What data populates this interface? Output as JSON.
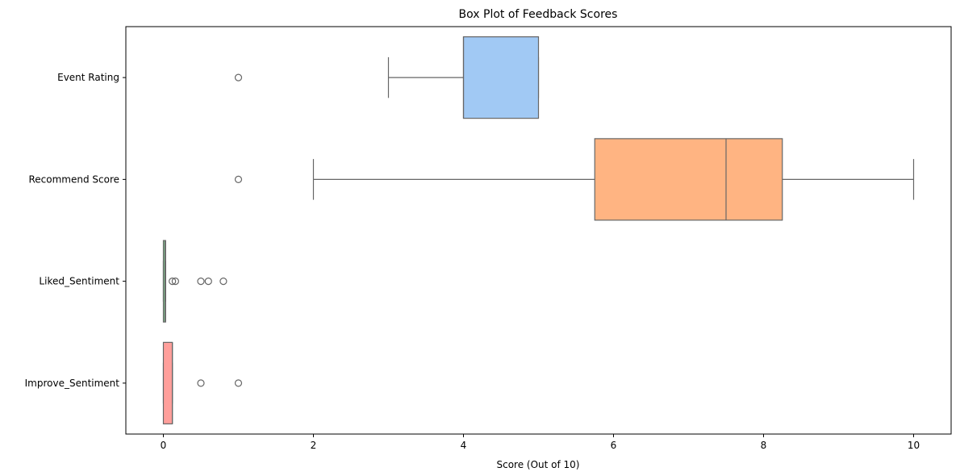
{
  "chart_data": {
    "type": "box",
    "title": "Box Plot of Feedback Scores",
    "xlabel": "Score (Out of 10)",
    "ylabel": "",
    "xlim": [
      -0.5,
      10.5
    ],
    "xticks": [
      0,
      2,
      4,
      6,
      8,
      10
    ],
    "grid": false,
    "categories": [
      "Event Rating",
      "Recommend Score",
      "Liked_Sentiment",
      "Improve_Sentiment"
    ],
    "boxes": [
      {
        "name": "Event Rating",
        "color": "#a1c9f4",
        "whisker_low": 3,
        "q1": 4,
        "median": 4,
        "q3": 5,
        "whisker_high": 5,
        "outliers": [
          1
        ]
      },
      {
        "name": "Recommend Score",
        "color": "#ffb482",
        "whisker_low": 2,
        "q1": 5.75,
        "median": 7.5,
        "q3": 8.25,
        "whisker_high": 10,
        "outliers": [
          1
        ]
      },
      {
        "name": "Liked_Sentiment",
        "color": "#8de5a1",
        "whisker_low": 0,
        "q1": 0.0,
        "median": 0.02,
        "q3": 0.03,
        "whisker_high": 0.03,
        "outliers": [
          0.12,
          0.16,
          0.5,
          0.6,
          0.8
        ]
      },
      {
        "name": "Improve_Sentiment",
        "color": "#ff9f9b",
        "whisker_low": 0,
        "q1": 0.0,
        "median": 0.12,
        "q3": 0.12,
        "whisker_high": 0.12,
        "outliers": [
          0.5,
          1.0
        ]
      }
    ],
    "line_color": "#666666"
  }
}
